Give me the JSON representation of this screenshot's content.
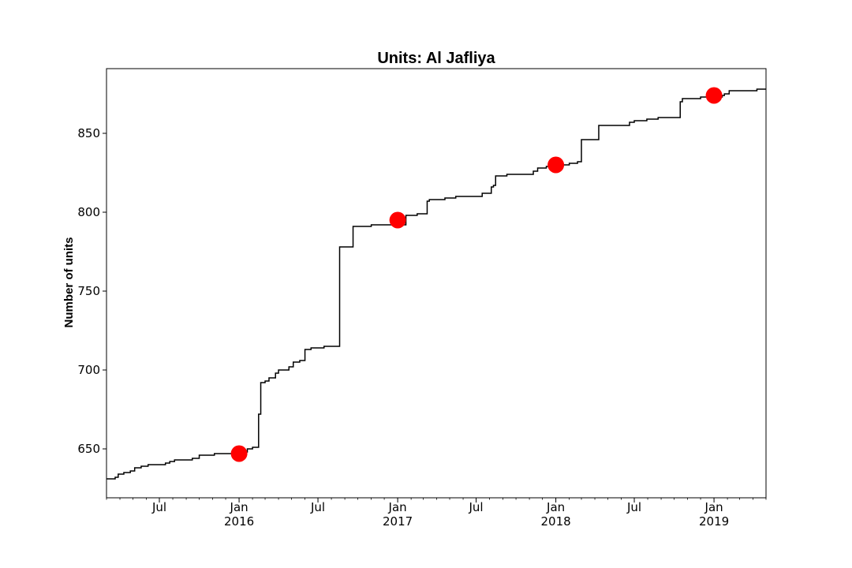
{
  "chart_data": {
    "type": "line",
    "title": "Units: Al Jafliya",
    "xlabel": "",
    "ylabel": "Number of units",
    "xlim": [
      "2015-03-01",
      "2019-05-01"
    ],
    "ylim": [
      619,
      891
    ],
    "grid": false,
    "line_color": "#000000",
    "marker_color": "#ff0000",
    "y_ticks": [
      650,
      700,
      750,
      800,
      850
    ],
    "x_major_ticks": [
      {
        "date": "2015-07-01",
        "label": "Jul",
        "year": ""
      },
      {
        "date": "2016-01-01",
        "label": "Jan",
        "year": "2016"
      },
      {
        "date": "2016-07-01",
        "label": "Jul",
        "year": ""
      },
      {
        "date": "2017-01-01",
        "label": "Jan",
        "year": "2017"
      },
      {
        "date": "2017-07-01",
        "label": "Jul",
        "year": ""
      },
      {
        "date": "2018-01-01",
        "label": "Jan",
        "year": "2018"
      },
      {
        "date": "2018-07-01",
        "label": "Jul",
        "year": ""
      },
      {
        "date": "2019-01-01",
        "label": "Jan",
        "year": "2019"
      }
    ],
    "series": [
      {
        "style": "step",
        "points": [
          [
            "2015-03-01",
            631
          ],
          [
            "2015-03-21",
            632
          ],
          [
            "2015-03-28",
            634
          ],
          [
            "2015-04-10",
            635
          ],
          [
            "2015-04-25",
            636
          ],
          [
            "2015-05-05",
            638
          ],
          [
            "2015-05-20",
            639
          ],
          [
            "2015-06-05",
            640
          ],
          [
            "2015-07-15",
            641
          ],
          [
            "2015-07-25",
            642
          ],
          [
            "2015-08-05",
            643
          ],
          [
            "2015-09-15",
            644
          ],
          [
            "2015-10-01",
            646
          ],
          [
            "2015-11-05",
            647
          ],
          [
            "2015-12-15",
            648
          ],
          [
            "2016-01-20",
            650
          ],
          [
            "2016-02-01",
            651
          ],
          [
            "2016-02-15",
            672
          ],
          [
            "2016-02-20",
            692
          ],
          [
            "2016-03-01",
            693
          ],
          [
            "2016-03-10",
            695
          ],
          [
            "2016-03-25",
            698
          ],
          [
            "2016-04-01",
            700
          ],
          [
            "2016-04-25",
            702
          ],
          [
            "2016-05-05",
            705
          ],
          [
            "2016-05-20",
            706
          ],
          [
            "2016-06-01",
            713
          ],
          [
            "2016-06-15",
            714
          ],
          [
            "2016-07-15",
            715
          ],
          [
            "2016-08-20",
            778
          ],
          [
            "2016-09-20",
            791
          ],
          [
            "2016-11-01",
            792
          ],
          [
            "2017-01-20",
            798
          ],
          [
            "2017-02-15",
            799
          ],
          [
            "2017-03-10",
            807
          ],
          [
            "2017-03-15",
            808
          ],
          [
            "2017-04-20",
            809
          ],
          [
            "2017-05-15",
            810
          ],
          [
            "2017-07-15",
            812
          ],
          [
            "2017-08-05",
            816
          ],
          [
            "2017-08-10",
            817
          ],
          [
            "2017-08-15",
            823
          ],
          [
            "2017-09-10",
            824
          ],
          [
            "2017-11-10",
            826
          ],
          [
            "2017-11-20",
            828
          ],
          [
            "2017-12-10",
            829
          ],
          [
            "2017-12-20",
            830
          ],
          [
            "2018-02-01",
            831
          ],
          [
            "2018-02-20",
            832
          ],
          [
            "2018-03-01",
            846
          ],
          [
            "2018-04-10",
            855
          ],
          [
            "2018-06-20",
            857
          ],
          [
            "2018-07-01",
            858
          ],
          [
            "2018-07-30",
            859
          ],
          [
            "2018-08-25",
            860
          ],
          [
            "2018-10-15",
            870
          ],
          [
            "2018-10-20",
            872
          ],
          [
            "2018-12-01",
            873
          ],
          [
            "2019-01-20",
            874
          ],
          [
            "2019-01-25",
            875
          ],
          [
            "2019-02-05",
            877
          ],
          [
            "2019-04-10",
            878
          ]
        ]
      },
      {
        "style": "markers",
        "points": [
          [
            "2016-01-01",
            647
          ],
          [
            "2017-01-01",
            795
          ],
          [
            "2018-01-01",
            830
          ],
          [
            "2019-01-01",
            874
          ]
        ]
      }
    ]
  }
}
